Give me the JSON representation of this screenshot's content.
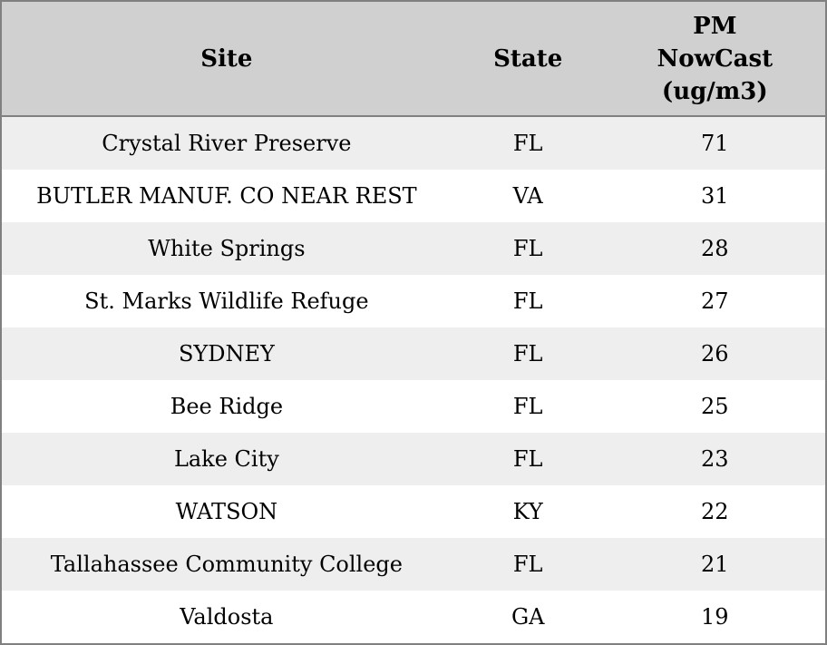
{
  "table": {
    "columns": [
      {
        "key": "site",
        "label": "Site"
      },
      {
        "key": "state",
        "label": "State"
      },
      {
        "key": "pm_nowcast",
        "label": "PM\nNowCast\n(ug/m3)"
      }
    ],
    "rows": [
      {
        "site": "Crystal River Preserve",
        "state": "FL",
        "pm_nowcast": "71"
      },
      {
        "site": "BUTLER MANUF. CO NEAR REST",
        "state": "VA",
        "pm_nowcast": "31"
      },
      {
        "site": "White Springs",
        "state": "FL",
        "pm_nowcast": "28"
      },
      {
        "site": "St. Marks Wildlife Refuge",
        "state": "FL",
        "pm_nowcast": "27"
      },
      {
        "site": "SYDNEY",
        "state": "FL",
        "pm_nowcast": "26"
      },
      {
        "site": "Bee Ridge",
        "state": "FL",
        "pm_nowcast": "25"
      },
      {
        "site": "Lake City",
        "state": "FL",
        "pm_nowcast": "23"
      },
      {
        "site": "WATSON",
        "state": "KY",
        "pm_nowcast": "22"
      },
      {
        "site": "Tallahassee Community College",
        "state": "FL",
        "pm_nowcast": "21"
      },
      {
        "site": "Valdosta",
        "state": "GA",
        "pm_nowcast": "19"
      }
    ]
  },
  "colors": {
    "header_bg": "#d0d0d0",
    "row_bg": "#ffffff",
    "row_alt_bg": "#eeeeee",
    "border": "#808080",
    "text": "#000000"
  }
}
